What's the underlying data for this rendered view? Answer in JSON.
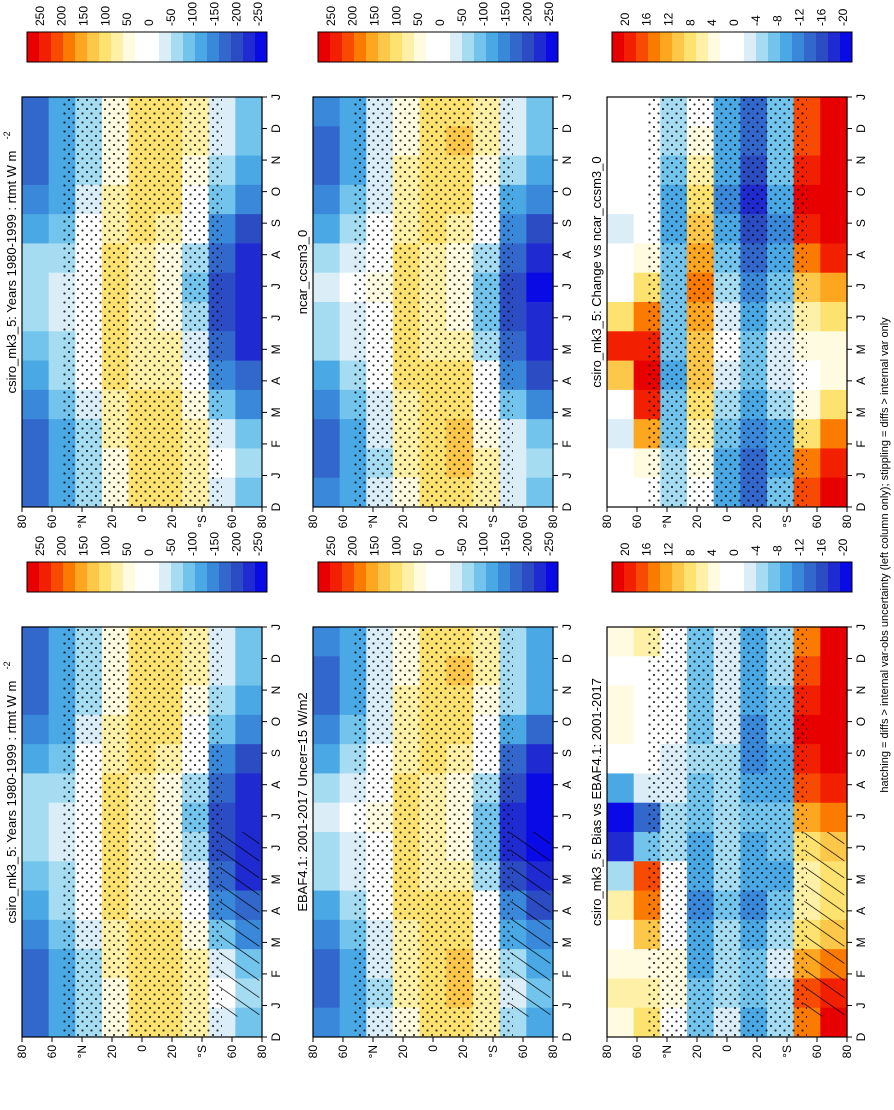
{
  "footer_note": "hatching = diffs > internal var-obs uncertainty (left column only); stippling = diffs > internal var only",
  "month_ticks": [
    "D",
    "J",
    "F",
    "M",
    "A",
    "M",
    "J",
    "J",
    "A",
    "S",
    "O",
    "N",
    "D",
    "J"
  ],
  "lat_ticks": [
    "80",
    "60",
    "°N",
    "20",
    "0",
    "20",
    "°S",
    "60",
    "80"
  ],
  "colorbar_abs": {
    "levels": [
      "250",
      "200",
      "150",
      "100",
      "50",
      "0",
      "-50",
      "-100",
      "-150",
      "-200",
      "-250"
    ],
    "colors": [
      "#e80000",
      "#f22000",
      "#f84a00",
      "#fb7a00",
      "#fda620",
      "#fdc84a",
      "#fde270",
      "#fff0a8",
      "#fffbe0",
      "#ffffff",
      "#ffffff",
      "#dbeef8",
      "#a6dcf2",
      "#72c4ec",
      "#4aa8e4",
      "#3a88da",
      "#3268cc",
      "#2c4cc4",
      "#1f2ad0",
      "#0a0ae6"
    ]
  },
  "colorbar_diff": {
    "levels": [
      "20",
      "16",
      "12",
      "8",
      "4",
      "0",
      "-4",
      "-8",
      "-12",
      "-16",
      "-20"
    ],
    "colors": [
      "#e80000",
      "#f22000",
      "#f84a00",
      "#fb7a00",
      "#fda620",
      "#fdc84a",
      "#fde270",
      "#fff0a8",
      "#fffbe0",
      "#ffffff",
      "#ffffff",
      "#dbeef8",
      "#a6dcf2",
      "#72c4ec",
      "#4aa8e4",
      "#3a88da",
      "#3268cc",
      "#2c4cc4",
      "#1f2ad0",
      "#0a0ae6"
    ]
  },
  "chart_data": [
    {
      "type": "heatmap",
      "title": "csiro_mk3_5: Years 1980-1999 : rtmt W m",
      "title_sup": "-2",
      "x": [
        "D",
        "J",
        "F",
        "M",
        "A",
        "M",
        "J",
        "J",
        "A",
        "S",
        "O",
        "N",
        "D",
        "J"
      ],
      "y": [
        "80N",
        "60N",
        "40N",
        "20N",
        "0",
        "20S",
        "40S",
        "60S",
        "80S"
      ],
      "colorbar": "colorbar_abs",
      "overlays": [
        "stippling",
        "hatching"
      ],
      "values": [
        [
          -170,
          -180,
          -175,
          -150,
          -120,
          -90,
          -60,
          -55,
          -80,
          -120,
          -160,
          -180,
          -185,
          -170
        ],
        [
          -120,
          -125,
          -120,
          -100,
          -80,
          -55,
          -35,
          -30,
          -55,
          -85,
          -110,
          -120,
          -125,
          -120
        ],
        [
          -60,
          -65,
          -55,
          -40,
          -20,
          0,
          20,
          25,
          0,
          -25,
          -45,
          -55,
          -60,
          -60
        ],
        [
          50,
          55,
          60,
          75,
          90,
          100,
          105,
          105,
          95,
          75,
          60,
          55,
          50,
          50
        ],
        [
          95,
          90,
          90,
          85,
          80,
          75,
          70,
          70,
          75,
          85,
          95,
          100,
          100,
          95
        ],
        [
          100,
          110,
          110,
          100,
          80,
          60,
          40,
          35,
          50,
          75,
          95,
          105,
          110,
          105
        ],
        [
          70,
          80,
          60,
          30,
          -10,
          -50,
          -80,
          -85,
          -60,
          -20,
          20,
          55,
          70,
          75
        ],
        [
          -40,
          -20,
          -40,
          -90,
          -140,
          -180,
          -200,
          -205,
          -180,
          -150,
          -100,
          -60,
          -40,
          -40
        ],
        [
          -90,
          -70,
          -90,
          -140,
          -190,
          -220,
          -240,
          -245,
          -230,
          -200,
          -150,
          -110,
          -90,
          -90
        ]
      ]
    },
    {
      "type": "heatmap",
      "title": "csiro_mk3_5: Years 1980-1999 : rtmt W m",
      "title_sup": "-2",
      "x": [
        "D",
        "J",
        "F",
        "M",
        "A",
        "M",
        "J",
        "J",
        "A",
        "S",
        "O",
        "N",
        "D",
        "J"
      ],
      "y": [
        "80N",
        "60N",
        "40N",
        "20N",
        "0",
        "20S",
        "40S",
        "60S",
        "80S"
      ],
      "colorbar": "colorbar_abs",
      "overlays": [
        "stippling"
      ],
      "values": [
        [
          -170,
          -180,
          -175,
          -150,
          -120,
          -90,
          -60,
          -55,
          -80,
          -120,
          -160,
          -180,
          -185,
          -170
        ],
        [
          -120,
          -125,
          -120,
          -100,
          -80,
          -55,
          -35,
          -30,
          -55,
          -85,
          -110,
          -120,
          -125,
          -120
        ],
        [
          -60,
          -65,
          -55,
          -40,
          -20,
          0,
          20,
          25,
          0,
          -25,
          -45,
          -55,
          -60,
          -60
        ],
        [
          50,
          55,
          60,
          75,
          90,
          100,
          105,
          105,
          95,
          75,
          60,
          55,
          50,
          50
        ],
        [
          95,
          90,
          90,
          85,
          80,
          75,
          70,
          70,
          75,
          85,
          95,
          100,
          100,
          95
        ],
        [
          100,
          110,
          110,
          100,
          80,
          60,
          40,
          35,
          50,
          75,
          95,
          105,
          110,
          105
        ],
        [
          70,
          80,
          60,
          30,
          -10,
          -50,
          -80,
          -85,
          -60,
          -20,
          20,
          55,
          70,
          75
        ],
        [
          -40,
          -20,
          -40,
          -90,
          -140,
          -180,
          -200,
          -205,
          -180,
          -150,
          -100,
          -60,
          -40,
          -40
        ],
        [
          -90,
          -70,
          -90,
          -140,
          -190,
          -220,
          -240,
          -245,
          -230,
          -200,
          -150,
          -110,
          -90,
          -90
        ]
      ]
    },
    {
      "type": "heatmap",
      "title": "EBAF4.1: 2001-2017 Uncer=15 W/m2",
      "title_sup": "",
      "x": [
        "D",
        "J",
        "F",
        "M",
        "A",
        "M",
        "J",
        "J",
        "A",
        "S",
        "O",
        "N",
        "D",
        "J"
      ],
      "y": [
        "80N",
        "60N",
        "40N",
        "20N",
        "0",
        "20S",
        "40S",
        "60S",
        "80S"
      ],
      "colorbar": "colorbar_abs",
      "overlays": [
        "stippling",
        "hatching"
      ],
      "values": [
        [
          -160,
          -170,
          -165,
          -140,
          -110,
          -80,
          -55,
          -50,
          -75,
          -110,
          -150,
          -170,
          -175,
          -160
        ],
        [
          -110,
          -115,
          -110,
          -95,
          -75,
          -50,
          -30,
          -25,
          -50,
          -80,
          -100,
          -110,
          -115,
          -110
        ],
        [
          -50,
          -55,
          -45,
          -30,
          -10,
          10,
          25,
          30,
          5,
          -15,
          -35,
          -45,
          -50,
          -50
        ],
        [
          55,
          60,
          65,
          80,
          95,
          105,
          110,
          110,
          100,
          80,
          65,
          60,
          55,
          55
        ],
        [
          100,
          95,
          95,
          90,
          85,
          80,
          75,
          75,
          80,
          90,
          100,
          105,
          105,
          100
        ],
        [
          105,
          115,
          115,
          105,
          85,
          65,
          45,
          40,
          55,
          80,
          100,
          110,
          115,
          110
        ],
        [
          60,
          75,
          55,
          25,
          -15,
          -55,
          -85,
          -90,
          -65,
          -25,
          15,
          50,
          65,
          70
        ],
        [
          -60,
          -40,
          -60,
          -110,
          -160,
          -200,
          -220,
          -225,
          -200,
          -170,
          -120,
          -80,
          -60,
          -60
        ],
        [
          -110,
          -90,
          -110,
          -160,
          -210,
          -240,
          -255,
          -260,
          -250,
          -220,
          -170,
          -130,
          -110,
          -110
        ]
      ]
    },
    {
      "type": "heatmap",
      "title": "ncar_ccsm3_0",
      "title_sup": "",
      "x": [
        "D",
        "J",
        "F",
        "M",
        "A",
        "M",
        "J",
        "J",
        "A",
        "S",
        "O",
        "N",
        "D",
        "J"
      ],
      "y": [
        "80N",
        "60N",
        "40N",
        "20N",
        "0",
        "20S",
        "40S",
        "60S",
        "80S"
      ],
      "colorbar": "colorbar_abs",
      "overlays": [
        "stippling"
      ],
      "values": [
        [
          -160,
          -170,
          -165,
          -140,
          -110,
          -80,
          -55,
          -50,
          -75,
          -110,
          -150,
          -170,
          -175,
          -160
        ],
        [
          -110,
          -115,
          -110,
          -95,
          -75,
          -50,
          -30,
          -25,
          -50,
          -80,
          -100,
          -110,
          -115,
          -110
        ],
        [
          -50,
          -55,
          -45,
          -30,
          -10,
          10,
          25,
          30,
          5,
          -15,
          -35,
          -45,
          -50,
          -50
        ],
        [
          55,
          60,
          65,
          80,
          95,
          105,
          110,
          110,
          100,
          80,
          65,
          60,
          55,
          55
        ],
        [
          100,
          95,
          95,
          90,
          85,
          80,
          75,
          75,
          80,
          90,
          100,
          105,
          105,
          100
        ],
        [
          105,
          115,
          115,
          105,
          85,
          65,
          45,
          40,
          55,
          80,
          100,
          110,
          115,
          110
        ],
        [
          60,
          75,
          55,
          25,
          -15,
          -55,
          -85,
          -90,
          -65,
          -25,
          15,
          50,
          65,
          70
        ],
        [
          -50,
          -30,
          -50,
          -100,
          -150,
          -190,
          -210,
          -215,
          -190,
          -160,
          -110,
          -70,
          -50,
          -50
        ],
        [
          -100,
          -80,
          -100,
          -150,
          -200,
          -230,
          -245,
          -250,
          -240,
          -210,
          -160,
          -120,
          -100,
          -100
        ]
      ]
    },
    {
      "type": "heatmap",
      "title": "csiro_mk3_5: Bias vs EBAF4.1: 2001-2017",
      "title_sup": "",
      "x": [
        "D",
        "J",
        "F",
        "M",
        "A",
        "M",
        "J",
        "J",
        "A",
        "S",
        "O",
        "N",
        "D",
        "J"
      ],
      "y": [
        "80N",
        "60N",
        "40N",
        "20N",
        "0",
        "20S",
        "40S",
        "60S",
        "80S"
      ],
      "colorbar": "colorbar_diff",
      "overlays": [
        "stippling",
        "hatching"
      ],
      "values": [
        [
          4,
          6,
          4,
          2,
          6,
          -6,
          -18,
          -20,
          -10,
          2,
          4,
          4,
          2,
          4
        ],
        [
          8,
          6,
          4,
          10,
          14,
          16,
          -8,
          -14,
          -4,
          0,
          -2,
          0,
          2,
          6
        ],
        [
          2,
          4,
          4,
          2,
          2,
          0,
          -6,
          -6,
          -4,
          -4,
          -2,
          0,
          2,
          2
        ],
        [
          -8,
          -8,
          -10,
          -10,
          -12,
          -10,
          -10,
          -8,
          -8,
          -6,
          -8,
          -8,
          -8,
          -8
        ],
        [
          -4,
          -6,
          -6,
          -6,
          -8,
          -6,
          -6,
          -6,
          -6,
          -6,
          -4,
          -4,
          -4,
          -4
        ],
        [
          -10,
          -8,
          -8,
          -10,
          -12,
          -10,
          -10,
          -8,
          -10,
          -12,
          -12,
          -10,
          -10,
          -10
        ],
        [
          -6,
          -6,
          -4,
          -6,
          -8,
          -10,
          -8,
          -8,
          -10,
          -10,
          -8,
          -8,
          -6,
          -6
        ],
        [
          14,
          16,
          12,
          8,
          6,
          6,
          8,
          12,
          16,
          18,
          20,
          18,
          16,
          14
        ],
        [
          20,
          18,
          14,
          10,
          8,
          8,
          10,
          14,
          18,
          22,
          24,
          22,
          20,
          20
        ]
      ]
    },
    {
      "type": "heatmap",
      "title": "csiro_mk3_5: Change vs ncar_ccsm3_0",
      "title_sup": "",
      "x": [
        "D",
        "J",
        "F",
        "M",
        "A",
        "M",
        "J",
        "J",
        "A",
        "S",
        "O",
        "N",
        "D",
        "J"
      ],
      "y": [
        "80N",
        "60N",
        "40N",
        "20N",
        "0",
        "20S",
        "40S",
        "60S",
        "80S"
      ],
      "colorbar": "colorbar_diff",
      "overlays": [
        "stippling"
      ],
      "values": [
        [
          -2,
          -2,
          -4,
          2,
          10,
          18,
          8,
          0,
          -2,
          -4,
          -2,
          -2,
          -2,
          -2
        ],
        [
          2,
          4,
          12,
          18,
          20,
          18,
          14,
          8,
          4,
          2,
          0,
          2,
          2,
          2
        ],
        [
          -6,
          -6,
          -8,
          -8,
          -10,
          -8,
          -8,
          -8,
          -8,
          -10,
          -10,
          -8,
          -6,
          -6
        ],
        [
          2,
          4,
          6,
          8,
          10,
          10,
          12,
          14,
          12,
          10,
          8,
          6,
          4,
          2
        ],
        [
          -10,
          -10,
          -8,
          -6,
          -4,
          -2,
          -4,
          -6,
          -8,
          -10,
          -12,
          -10,
          -10,
          -10
        ],
        [
          -14,
          -14,
          -12,
          -10,
          -8,
          -8,
          -10,
          -12,
          -14,
          -16,
          -18,
          -16,
          -14,
          -14
        ],
        [
          -8,
          -10,
          -10,
          -6,
          -4,
          -4,
          -6,
          -8,
          -10,
          -12,
          -10,
          -8,
          -8,
          -8
        ],
        [
          16,
          14,
          8,
          4,
          2,
          4,
          6,
          10,
          14,
          18,
          20,
          18,
          16,
          16
        ],
        [
          20,
          18,
          14,
          8,
          4,
          4,
          8,
          12,
          18,
          20,
          22,
          20,
          20,
          20
        ]
      ]
    }
  ]
}
